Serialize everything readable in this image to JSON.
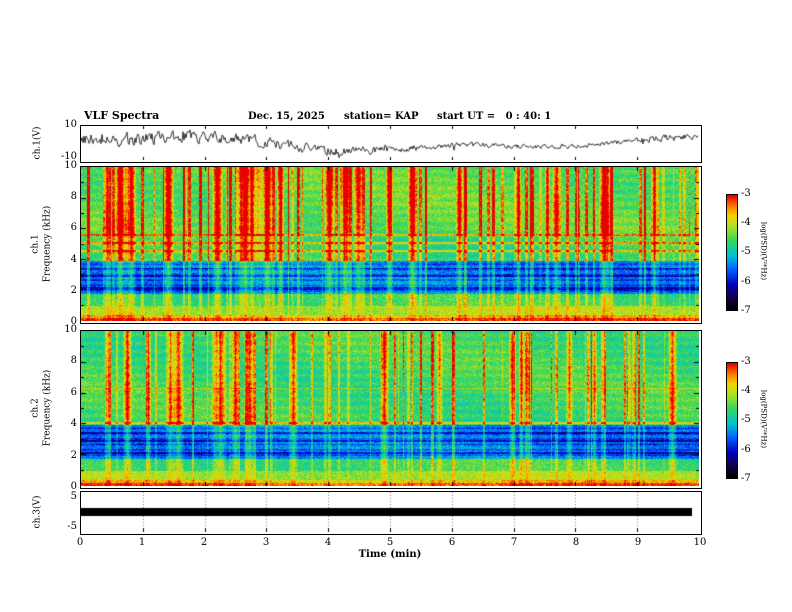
{
  "header": {
    "title": "VLF Spectra",
    "date": "Dec. 15, 2025",
    "station": "station= KAP",
    "start_ut": "start UT =   0 : 40: 1"
  },
  "axes": {
    "x": {
      "label": "Time (min)",
      "ticks": [
        "0",
        "1",
        "2",
        "3",
        "4",
        "5",
        "6",
        "7",
        "8",
        "9",
        "10"
      ]
    },
    "ch1_wave": {
      "label": "ch.1(V)",
      "tick_top": "10",
      "tick_bottom": "-10"
    },
    "ch1_spec": {
      "line1": "ch.1",
      "line2": "Frequency (kHz)",
      "ticks": [
        "10",
        "8",
        "6",
        "4",
        "2",
        "0"
      ]
    },
    "ch2_spec": {
      "line1": "ch.2",
      "line2": "Frequency (kHz)",
      "ticks": [
        "10",
        "8",
        "6",
        "4",
        "2",
        "0"
      ]
    },
    "ch3_wave": {
      "label": "ch.3(V)",
      "tick_top": "5",
      "tick_bottom": "-5"
    }
  },
  "colorbars": {
    "label": "log(PSD)(V²*Hz)",
    "ticks": [
      "-3",
      "-4",
      "-5",
      "-6",
      "-7"
    ]
  },
  "chart_data": [
    {
      "type": "line",
      "title": "ch.1 voltage waveform",
      "ylabel": "ch.1(V)",
      "xlabel": "Time (min)",
      "xlim": [
        0,
        10
      ],
      "ylim": [
        -10,
        10
      ],
      "description": "Dense broadband noise waveform oscillating about 0 V with excursions to roughly ±8 V across the full 10-minute record"
    },
    {
      "type": "heatmap",
      "title": "ch.1 VLF spectrogram",
      "ylabel": "Frequency (kHz)",
      "xlabel": "Time (min)",
      "xlim": [
        0,
        10
      ],
      "ylim": [
        0,
        10
      ],
      "zlabel": "log(PSD)(V²*Hz)",
      "zlim": [
        -7,
        -3
      ],
      "colormap": "black(-7) -> blue(-6) -> cyan/green(-5) -> yellow(-4) -> red(-3)",
      "features": [
        "green/yellow broadband background near -4.5 to -5",
        "dense red vertical sferic streaks throughout, strongest above 5 kHz",
        "blue low-power band with dark horizontal striations between ~1.8 and 3.9 kHz",
        "narrow red horizontal spectral lines near 4.6, 5.1 and 5.6 kHz",
        "intense red/orange band below ~1 kHz"
      ]
    },
    {
      "type": "heatmap",
      "title": "ch.2 VLF spectrogram",
      "ylabel": "Frequency (kHz)",
      "xlabel": "Time (min)",
      "xlim": [
        0,
        10
      ],
      "ylim": [
        0,
        10
      ],
      "zlabel": "log(PSD)(V²*Hz)",
      "zlim": [
        -7,
        -3
      ],
      "colormap": "black(-7) -> blue(-6) -> cyan/green(-5) -> yellow(-4) -> red(-3)",
      "features": [
        "green broadband background with scattered red/orange vertical streaks",
        "blue low-power band with dark horizontal striations between ~1.8 and 3.9 kHz",
        "weak horizontal spectral lines near 4.0 and 6.3 kHz",
        "intense red/orange band below ~1 kHz"
      ]
    },
    {
      "type": "line",
      "title": "ch.3 voltage waveform",
      "ylabel": "ch.3(V)",
      "xlabel": "Time (min)",
      "xlim": [
        0,
        10
      ],
      "ylim": [
        -5,
        5
      ],
      "description": "Saturated/clipped signal rendered as a solid flat black band centered on 0 V spanning nearly the whole record"
    }
  ]
}
